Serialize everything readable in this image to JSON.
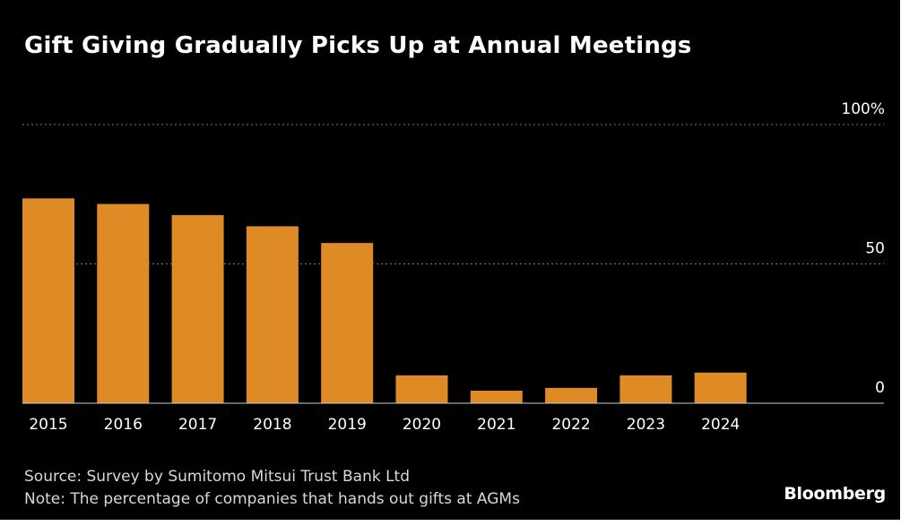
{
  "chart_data": {
    "type": "bar",
    "title": "Gift Giving Gradually Picks Up at Annual Meetings",
    "categories": [
      "2015",
      "2016",
      "2017",
      "2018",
      "2019",
      "2020",
      "2021",
      "2022",
      "2023",
      "2024"
    ],
    "values": [
      73.5,
      71.5,
      67.5,
      63.5,
      57.5,
      10,
      4.5,
      5.5,
      10,
      11
    ],
    "ylim": [
      0,
      100
    ],
    "y_ticks": [
      0,
      50,
      100
    ],
    "y_tick_labels": [
      "0",
      "50",
      "100%"
    ],
    "y_axis_position": "right",
    "grid": true,
    "xlabel": "",
    "ylabel": ""
  },
  "colors": {
    "background": "#000000",
    "bar": "#de8b25",
    "gridline": "#7a7a7a",
    "baseline": "#cccccc",
    "text": "#ffffff",
    "footer_text": "#d8d8d8"
  },
  "footer": {
    "source": "Source: Survey by Sumitomo Mitsui Trust Bank Ltd",
    "note": "Note: The percentage of companies that hands out gifts at AGMs"
  },
  "brand": "Bloomberg"
}
